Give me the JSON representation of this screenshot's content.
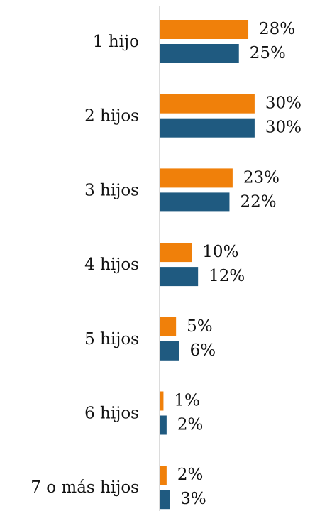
{
  "chart_data": {
    "type": "bar",
    "orientation": "horizontal",
    "categories": [
      "1 hijo",
      "2 hijos",
      "3 hijos",
      "4 hijos",
      "5 hijos",
      "6 hijos",
      "7 o más hijos"
    ],
    "series": [
      {
        "color": "#f0800a",
        "values": [
          28,
          30,
          23,
          10,
          5,
          1,
          2
        ],
        "value_labels": [
          "28%",
          "30%",
          "23%",
          "10%",
          "5%",
          "1%",
          "2%"
        ]
      },
      {
        "color": "#1f5a80",
        "values": [
          25,
          30,
          22,
          12,
          6,
          2,
          3
        ],
        "value_labels": [
          "25%",
          "30%",
          "22%",
          "12%",
          "6%",
          "2%",
          "3%"
        ]
      }
    ]
  }
}
